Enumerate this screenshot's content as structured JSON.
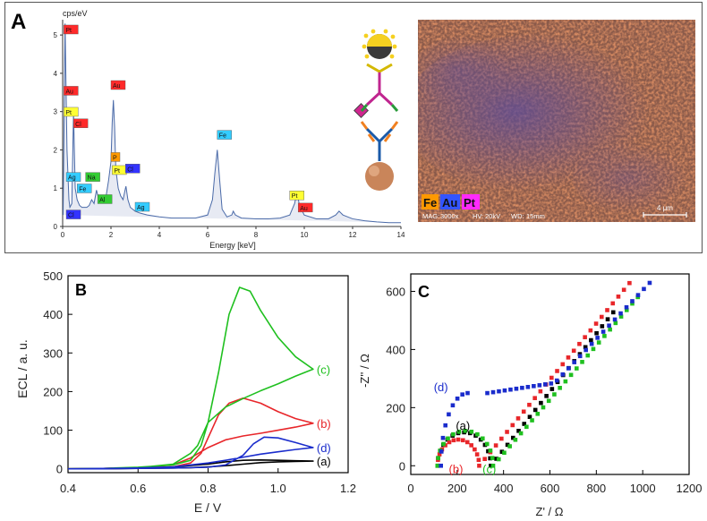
{
  "chart_data": [
    {
      "panel": "A",
      "type": "line",
      "title": "",
      "ylabel_top": "cps/eV",
      "xlabel": "Energy [keV]",
      "xlim": [
        0,
        14
      ],
      "ylim": [
        0,
        5.4
      ],
      "xticks": [
        0,
        2,
        4,
        6,
        8,
        10,
        12,
        14
      ],
      "yticks": [
        0,
        1,
        2,
        3,
        4,
        5
      ],
      "spectrum": {
        "x": [
          0.02,
          0.1,
          0.18,
          0.26,
          0.3,
          0.38,
          0.45,
          0.52,
          0.6,
          0.7,
          0.8,
          0.9,
          1.0,
          1.1,
          1.2,
          1.3,
          1.4,
          1.5,
          1.6,
          1.7,
          1.8,
          1.9,
          2.0,
          2.05,
          2.1,
          2.15,
          2.2,
          2.3,
          2.4,
          2.5,
          2.6,
          2.62,
          2.7,
          2.8,
          3.0,
          3.2,
          3.5,
          4.0,
          4.5,
          5.0,
          5.5,
          6.0,
          6.2,
          6.3,
          6.4,
          6.5,
          6.6,
          6.8,
          7.0,
          7.06,
          7.15,
          7.4,
          8.0,
          8.5,
          9.0,
          9.4,
          9.6,
          9.7,
          9.8,
          10.0,
          10.5,
          11.0,
          11.3,
          11.44,
          11.6,
          12.0,
          12.5,
          13.0,
          13.5,
          14.0
        ],
        "y": [
          0.3,
          5.3,
          2.0,
          0.7,
          0.5,
          0.6,
          3.0,
          1.0,
          0.7,
          0.55,
          0.5,
          0.5,
          0.5,
          0.55,
          0.7,
          0.6,
          0.95,
          0.7,
          0.65,
          0.7,
          0.8,
          1.2,
          1.7,
          2.7,
          3.3,
          2.6,
          1.5,
          1.0,
          0.8,
          0.7,
          1.0,
          1.05,
          0.7,
          0.5,
          0.4,
          0.35,
          0.3,
          0.25,
          0.22,
          0.22,
          0.22,
          0.3,
          0.7,
          1.4,
          2.0,
          1.2,
          0.45,
          0.25,
          0.3,
          0.4,
          0.3,
          0.22,
          0.2,
          0.2,
          0.22,
          0.3,
          0.6,
          0.9,
          0.55,
          0.3,
          0.2,
          0.2,
          0.3,
          0.4,
          0.3,
          0.2,
          0.15,
          0.12,
          0.1,
          0.1
        ]
      },
      "peak_labels": [
        {
          "text": "Pt",
          "x": 0.05,
          "y": 5.05,
          "color": "#ff2a2a"
        },
        {
          "text": "Au",
          "x": 0.05,
          "y": 3.45,
          "color": "#ff2a2a"
        },
        {
          "text": "Pt",
          "x": 0.05,
          "y": 2.9,
          "color": "#ffff33"
        },
        {
          "text": "Cl",
          "x": 0.45,
          "y": 2.6,
          "color": "#ff2a2a"
        },
        {
          "text": "Au",
          "x": 2.0,
          "y": 3.6,
          "color": "#ff2a2a"
        },
        {
          "text": "P",
          "x": 2.0,
          "y": 1.72,
          "color": "#ff9900"
        },
        {
          "text": "Pt",
          "x": 2.05,
          "y": 1.38,
          "color": "#ffff33"
        },
        {
          "text": "Cl",
          "x": 2.6,
          "y": 1.42,
          "color": "#3333ff"
        },
        {
          "text": "Ag",
          "x": 0.15,
          "y": 1.2,
          "color": "#33ccff"
        },
        {
          "text": "Fe",
          "x": 0.6,
          "y": 0.9,
          "color": "#33ccff"
        },
        {
          "text": "Na",
          "x": 0.95,
          "y": 1.2,
          "color": "#33cc33"
        },
        {
          "text": "Al",
          "x": 1.45,
          "y": 0.62,
          "color": "#33cc33"
        },
        {
          "text": "Cl",
          "x": 0.15,
          "y": 0.22,
          "color": "#3333ff"
        },
        {
          "text": "Ag",
          "x": 3.0,
          "y": 0.42,
          "color": "#33ccff"
        },
        {
          "text": "Fe",
          "x": 6.4,
          "y": 2.3,
          "color": "#33ccff"
        },
        {
          "text": "Pt",
          "x": 9.4,
          "y": 0.72,
          "color": "#ffff33"
        },
        {
          "text": "Au",
          "x": 9.75,
          "y": 0.4,
          "color": "#ff2a2a"
        }
      ],
      "map_legend": [
        {
          "text": "Fe",
          "color": "#ff9900"
        },
        {
          "text": "Au",
          "color": "#3355ff"
        },
        {
          "text": "Pt",
          "color": "#ff2aff"
        }
      ],
      "map_info": [
        {
          "label": "MAG:",
          "value": "3000x"
        },
        {
          "label": "HV:",
          "value": "20kV"
        },
        {
          "label": "WD:",
          "value": "15mm"
        }
      ],
      "scale_bar": "4 μm"
    },
    {
      "panel": "B",
      "type": "line",
      "xlabel": "E / V",
      "ylabel": "ECL / a. u.",
      "xlim": [
        0.4,
        1.2
      ],
      "ylim": [
        -10,
        500
      ],
      "xticks": [
        0.4,
        0.6,
        0.8,
        1.0,
        1.2
      ],
      "yticks": [
        0,
        100,
        200,
        300,
        400,
        500
      ],
      "series": [
        {
          "name": "(a)",
          "color": "#000000",
          "x": [
            0.4,
            0.5,
            0.6,
            0.7,
            0.75,
            0.8,
            0.85,
            0.9,
            0.95,
            1.0,
            1.05,
            1.1,
            1.05,
            1.0,
            0.95,
            0.9,
            0.85,
            0.8,
            0.7,
            0.6,
            0.5,
            0.4
          ],
          "y": [
            0,
            0,
            1,
            2,
            3,
            5,
            8,
            12,
            16,
            18,
            19,
            20,
            21,
            22,
            23,
            22,
            18,
            12,
            5,
            2,
            1,
            0
          ]
        },
        {
          "name": "(b)",
          "color": "#e8262a",
          "x": [
            0.4,
            0.5,
            0.6,
            0.7,
            0.75,
            0.78,
            0.8,
            0.83,
            0.86,
            0.9,
            0.95,
            1.0,
            1.05,
            1.1,
            1.05,
            1.0,
            0.95,
            0.9,
            0.85,
            0.8,
            0.75,
            0.7,
            0.6,
            0.5,
            0.4
          ],
          "y": [
            0,
            0,
            2,
            5,
            15,
            40,
            80,
            140,
            170,
            183,
            170,
            148,
            130,
            118,
            108,
            100,
            92,
            85,
            75,
            55,
            28,
            10,
            3,
            1,
            0
          ]
        },
        {
          "name": "(c)",
          "color": "#1fc01f",
          "x": [
            0.4,
            0.5,
            0.6,
            0.7,
            0.75,
            0.77,
            0.8,
            0.83,
            0.86,
            0.89,
            0.92,
            0.95,
            1.0,
            1.05,
            1.1,
            1.05,
            1.0,
            0.95,
            0.9,
            0.85,
            0.8,
            0.78,
            0.75,
            0.7,
            0.6,
            0.5,
            0.4
          ],
          "y": [
            0,
            0,
            3,
            12,
            40,
            60,
            120,
            250,
            400,
            470,
            460,
            410,
            340,
            290,
            258,
            240,
            220,
            202,
            182,
            160,
            120,
            60,
            22,
            10,
            4,
            1,
            0
          ]
        },
        {
          "name": "(d)",
          "color": "#1a2ccc",
          "x": [
            0.4,
            0.5,
            0.6,
            0.7,
            0.8,
            0.85,
            0.9,
            0.93,
            0.96,
            1.0,
            1.05,
            1.1,
            1.05,
            1.0,
            0.95,
            0.9,
            0.85,
            0.8,
            0.7,
            0.6,
            0.5,
            0.4
          ],
          "y": [
            0,
            0,
            1,
            2,
            4,
            10,
            35,
            65,
            82,
            80,
            68,
            55,
            50,
            44,
            38,
            30,
            22,
            15,
            5,
            2,
            1,
            0
          ]
        }
      ],
      "annotations": [
        {
          "text": "(a)",
          "series": "(a)"
        },
        {
          "text": "(b)",
          "series": "(b)"
        },
        {
          "text": "(c)",
          "series": "(c)"
        },
        {
          "text": "(d)",
          "series": "(d)"
        }
      ]
    },
    {
      "panel": "C",
      "type": "scatter",
      "xlabel": "Z' / Ω",
      "ylabel": "-Z'' / Ω",
      "xlim": [
        0,
        1200
      ],
      "ylim": [
        -30,
        660
      ],
      "xticks": [
        0,
        200,
        400,
        600,
        800,
        1000,
        1200
      ],
      "yticks": [
        0,
        200,
        400,
        600
      ],
      "series": [
        {
          "name": "(a)",
          "color": "#000000"
        },
        {
          "name": "(b)",
          "color": "#e8262a"
        },
        {
          "name": "(c)",
          "color": "#1fc01f"
        },
        {
          "name": "(d)",
          "color": "#1a2ccc"
        }
      ],
      "annotations": [
        {
          "text": "(a)",
          "color": "#000000"
        },
        {
          "text": "(b)",
          "color": "#e8262a"
        },
        {
          "text": "(c)",
          "color": "#1fc01f"
        },
        {
          "text": "(d)",
          "color": "#1a2ccc"
        }
      ]
    }
  ],
  "panel_letters": [
    "A",
    "B",
    "C"
  ]
}
